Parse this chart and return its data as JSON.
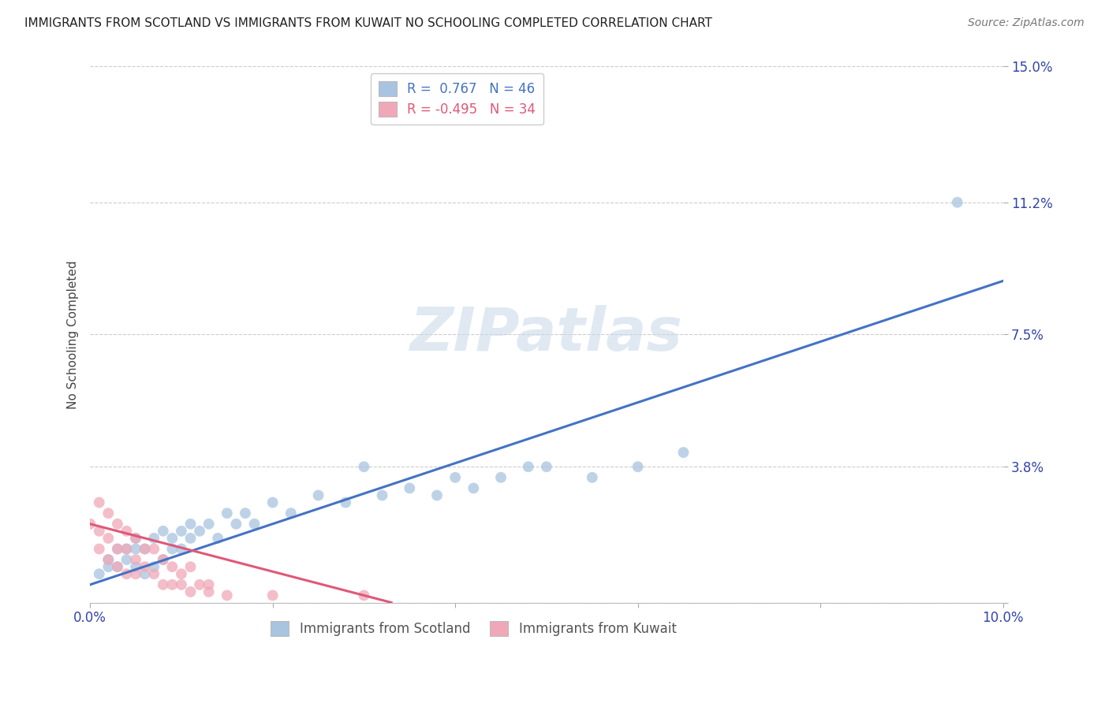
{
  "title": "IMMIGRANTS FROM SCOTLAND VS IMMIGRANTS FROM KUWAIT NO SCHOOLING COMPLETED CORRELATION CHART",
  "source": "Source: ZipAtlas.com",
  "ylabel": "No Schooling Completed",
  "xlim": [
    0.0,
    0.1
  ],
  "ylim": [
    0.0,
    0.15
  ],
  "xtick_vals": [
    0.0,
    0.02,
    0.04,
    0.06,
    0.08,
    0.1
  ],
  "xtick_labels": [
    "0.0%",
    "",
    "",
    "",
    "",
    "10.0%"
  ],
  "ytick_vals": [
    0.0,
    0.038,
    0.075,
    0.112,
    0.15
  ],
  "ytick_labels": [
    "",
    "3.8%",
    "7.5%",
    "11.2%",
    "15.0%"
  ],
  "scotland_color": "#a8c4e0",
  "kuwait_color": "#f0a8b8",
  "scotland_line_color": "#4472c4",
  "kuwait_line_color": "#e05878",
  "legend_scotland_label": "R =  0.767   N = 46",
  "legend_kuwait_label": "R = -0.495   N = 34",
  "watermark": "ZIPatlas",
  "scotland_x": [
    0.001,
    0.002,
    0.002,
    0.003,
    0.003,
    0.004,
    0.004,
    0.005,
    0.005,
    0.005,
    0.006,
    0.006,
    0.007,
    0.007,
    0.008,
    0.008,
    0.009,
    0.009,
    0.01,
    0.01,
    0.011,
    0.011,
    0.012,
    0.013,
    0.014,
    0.015,
    0.016,
    0.017,
    0.018,
    0.02,
    0.022,
    0.025,
    0.028,
    0.03,
    0.032,
    0.035,
    0.038,
    0.04,
    0.042,
    0.045,
    0.048,
    0.05,
    0.055,
    0.06,
    0.065,
    0.095
  ],
  "scotland_y": [
    0.008,
    0.01,
    0.012,
    0.01,
    0.015,
    0.012,
    0.015,
    0.01,
    0.015,
    0.018,
    0.008,
    0.015,
    0.01,
    0.018,
    0.012,
    0.02,
    0.015,
    0.018,
    0.015,
    0.02,
    0.018,
    0.022,
    0.02,
    0.022,
    0.018,
    0.025,
    0.022,
    0.025,
    0.022,
    0.028,
    0.025,
    0.03,
    0.028,
    0.038,
    0.03,
    0.032,
    0.03,
    0.035,
    0.032,
    0.035,
    0.038,
    0.038,
    0.035,
    0.038,
    0.042,
    0.112
  ],
  "kuwait_x": [
    0.0,
    0.001,
    0.001,
    0.001,
    0.002,
    0.002,
    0.002,
    0.003,
    0.003,
    0.003,
    0.004,
    0.004,
    0.004,
    0.005,
    0.005,
    0.005,
    0.006,
    0.006,
    0.007,
    0.007,
    0.008,
    0.008,
    0.009,
    0.009,
    0.01,
    0.01,
    0.011,
    0.011,
    0.012,
    0.013,
    0.013,
    0.015,
    0.02,
    0.03
  ],
  "kuwait_y": [
    0.022,
    0.028,
    0.02,
    0.015,
    0.025,
    0.018,
    0.012,
    0.022,
    0.015,
    0.01,
    0.02,
    0.015,
    0.008,
    0.018,
    0.012,
    0.008,
    0.015,
    0.01,
    0.015,
    0.008,
    0.012,
    0.005,
    0.01,
    0.005,
    0.008,
    0.005,
    0.01,
    0.003,
    0.005,
    0.005,
    0.003,
    0.002,
    0.002,
    0.002
  ],
  "scotland_line_x": [
    0.0,
    0.1
  ],
  "scotland_line_y": [
    0.005,
    0.09
  ],
  "kuwait_line_x": [
    0.0,
    0.033
  ],
  "kuwait_line_y": [
    0.022,
    0.0
  ]
}
